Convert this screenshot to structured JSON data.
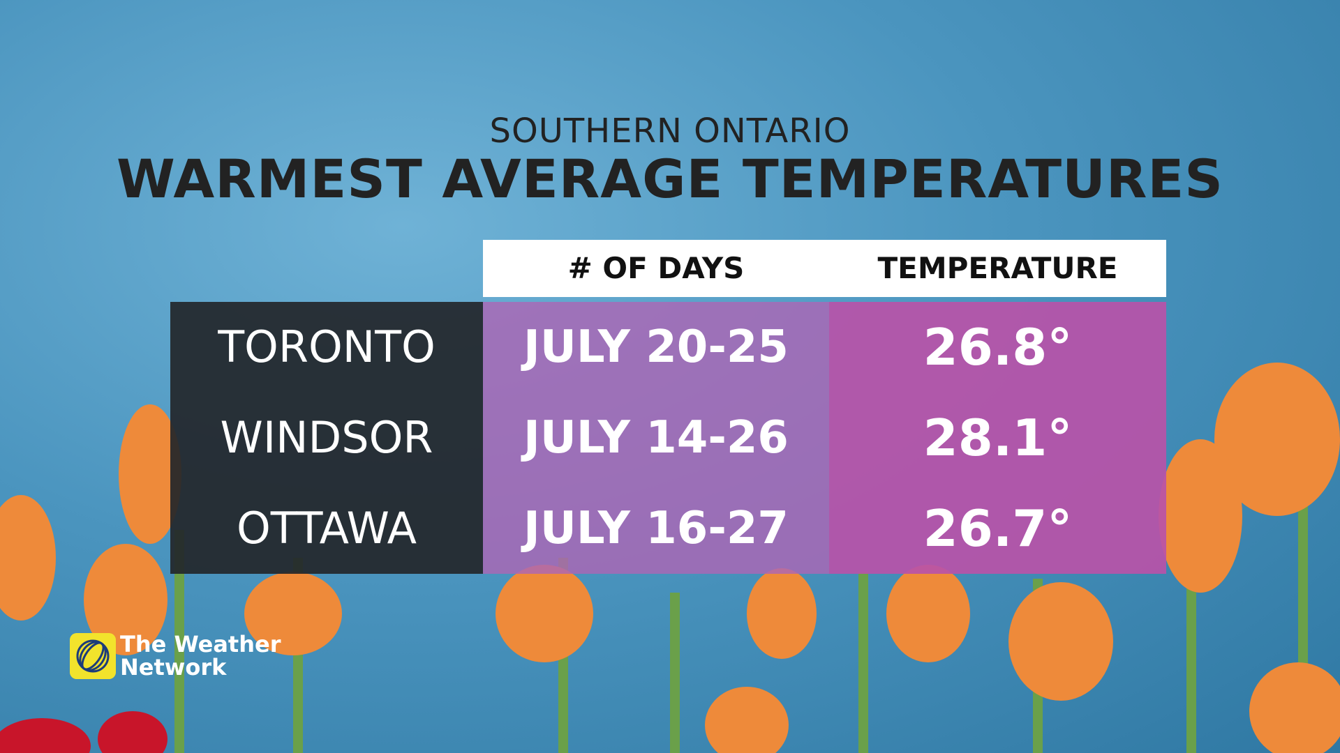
{
  "header": {
    "subtitle": "SOUTHERN ONTARIO",
    "title": "WARMEST AVERAGE TEMPERATURES"
  },
  "table": {
    "columns": [
      "# OF DAYS",
      "TEMPERATURE"
    ],
    "rows": [
      [
        "TORONTO",
        "JULY 20-25",
        "26.8°"
      ],
      [
        "WINDSOR",
        "JULY 14-26",
        "28.1°"
      ],
      [
        "OTTAWA",
        "JULY 16-27",
        "26.7°"
      ]
    ]
  },
  "logo": {
    "lines": [
      "The Weather",
      "Network"
    ]
  }
}
